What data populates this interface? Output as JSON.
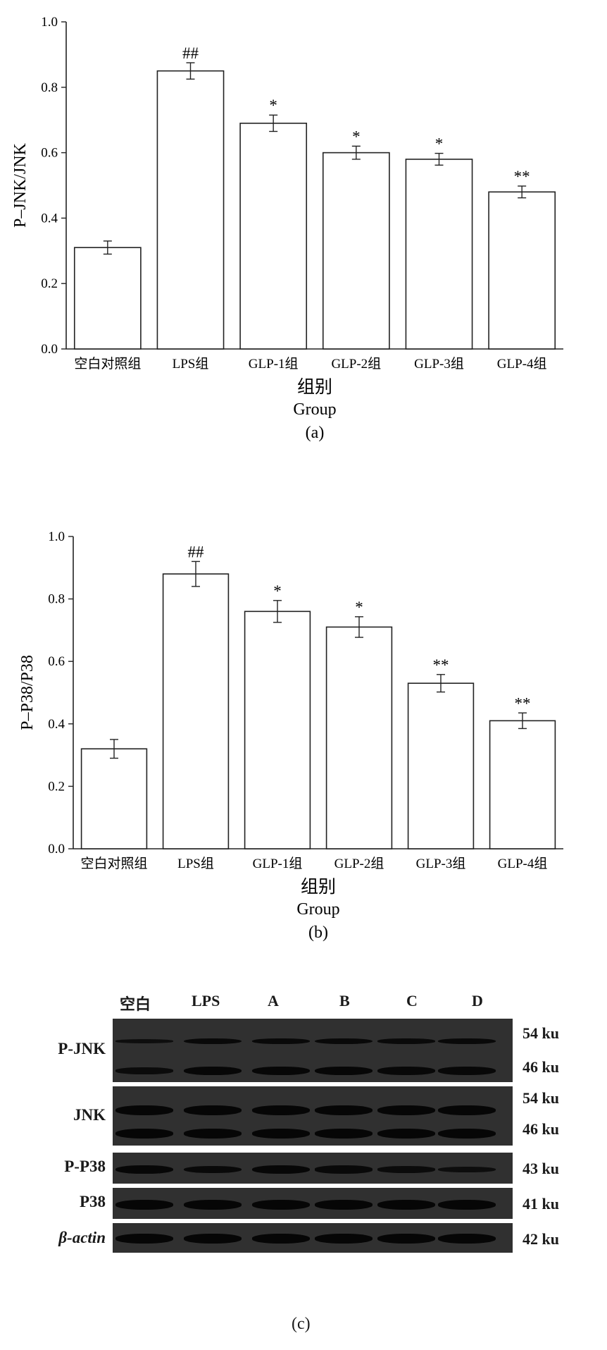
{
  "chart_data": [
    {
      "type": "bar",
      "panel_label": "(a)",
      "categories": [
        "空白对照组",
        "LPS组",
        "GLP-1组",
        "GLP-2组",
        "GLP-3组",
        "GLP-4组"
      ],
      "values": [
        0.31,
        0.85,
        0.69,
        0.6,
        0.58,
        0.48
      ],
      "errors": [
        0.02,
        0.025,
        0.025,
        0.02,
        0.018,
        0.018
      ],
      "significance": [
        "",
        "##",
        "*",
        "*",
        "*",
        "**"
      ],
      "ylabel": "P–JNK/JNK",
      "xlabel_cn": "组别",
      "xlabel_en": "Group",
      "ylim": [
        0,
        1.0
      ],
      "yticks": [
        "0.0",
        "0.2",
        "0.4",
        "0.6",
        "0.8",
        "1.0"
      ],
      "grid": false
    },
    {
      "type": "bar",
      "panel_label": "(b)",
      "categories": [
        "空白对照组",
        "LPS组",
        "GLP-1组",
        "GLP-2组",
        "GLP-3组",
        "GLP-4组"
      ],
      "values": [
        0.32,
        0.88,
        0.76,
        0.71,
        0.53,
        0.41
      ],
      "errors": [
        0.03,
        0.04,
        0.035,
        0.033,
        0.028,
        0.025
      ],
      "significance": [
        "",
        "##",
        "*",
        "*",
        "**",
        "**"
      ],
      "ylabel": "P–P38/P38",
      "xlabel_cn": "组别",
      "xlabel_en": "Group",
      "ylim": [
        0,
        1.0
      ],
      "yticks": [
        "0.0",
        "0.2",
        "0.4",
        "0.6",
        "0.8",
        "1.0"
      ],
      "grid": false
    }
  ],
  "blot": {
    "lanes": [
      "空白",
      "LPS",
      "A",
      "B",
      "C",
      "D"
    ],
    "rows": [
      {
        "name": "P-JNK",
        "sizes": [
          "54 ku",
          "46 ku"
        ]
      },
      {
        "name": "JNK",
        "sizes": [
          "54 ku",
          "46 ku"
        ]
      },
      {
        "name": "P-P38",
        "sizes": [
          "43 ku"
        ]
      },
      {
        "name": "P38",
        "sizes": [
          "41 ku"
        ]
      },
      {
        "name": "β-actin",
        "sizes": [
          "42 ku"
        ]
      }
    ],
    "panel_label": "(c)"
  }
}
